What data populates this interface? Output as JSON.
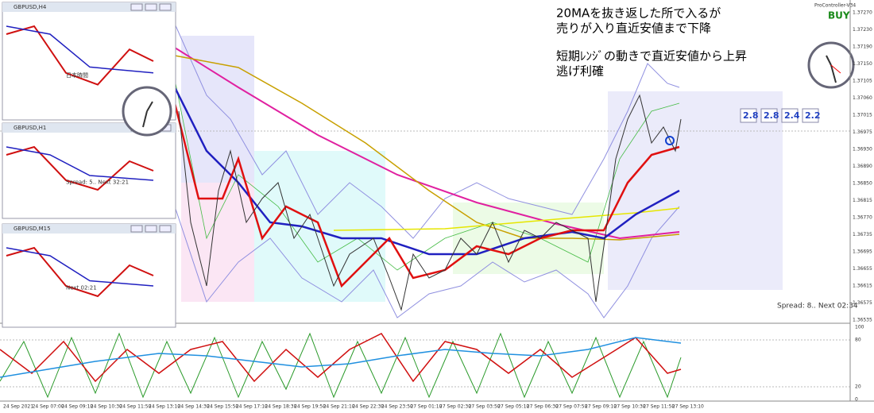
{
  "header": {
    "indicator": "ProController-V34",
    "signal": "BUY"
  },
  "annotations": [
    "20MAを抜き返した所で入るが",
    "売りが入り直近安値まで下降",
    "短期ﾚﾝｼﾞの動きで直近安値から上昇",
    "逃げ利確"
  ],
  "badges": [
    "2.8",
    "2.8",
    "2.4",
    "2.2"
  ],
  "spread": "Spread: 8.. Next 02:34",
  "price_axis": [
    "1.37270",
    "1.37230",
    "1.37190",
    "1.37150",
    "1.37105",
    "1.37060",
    "1.37015",
    "1.36975",
    "1.36930",
    "1.36890",
    "1.36850",
    "1.36815",
    "1.36770",
    "1.36735",
    "1.36695",
    "1.36655",
    "1.36615",
    "1.36575",
    "1.36535"
  ],
  "oscillator_axis": [
    "100",
    "80",
    "20",
    "0"
  ],
  "time_axis": [
    "24 Sep 2021",
    "24 Sep 07:00",
    "24 Sep 09:10",
    "24 Sep 10:30",
    "24 Sep 11:50",
    "24 Sep 13:10",
    "24 Sep 14:30",
    "24 Sep 15:50",
    "24 Sep 17:10",
    "24 Sep 18:30",
    "24 Sep 19:50",
    "24 Sep 21:10",
    "24 Sep 22:30",
    "24 Sep 23:50",
    "27 Sep 01:10",
    "27 Sep 02:30",
    "27 Sep 03:50",
    "27 Sep 05:10",
    "27 Sep 06:30",
    "27 Sep 07:50",
    "27 Sep 09:10",
    "27 Sep 10:30",
    "27 Sep 11:50",
    "27 Sep 13:10"
  ],
  "sub_windows": [
    {
      "title": "GBPUSD,H4",
      "label": "日本時間"
    },
    {
      "title": "GBPUSD,H1",
      "label": "Spread: 5.. Next 32:21"
    },
    {
      "title": "GBPUSD,M15",
      "label": "Next 02:21"
    }
  ]
}
